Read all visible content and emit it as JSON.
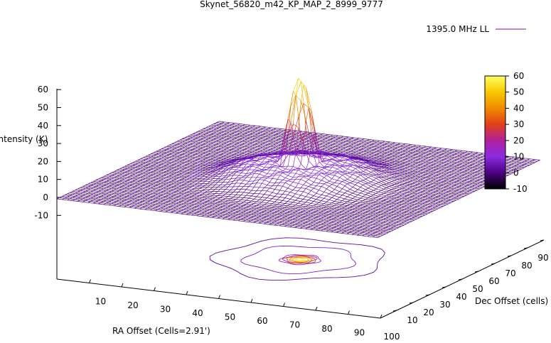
{
  "chart_data": {
    "type": "surface3d",
    "title": "Skynet_56820_m42_KP_MAP_2_8999_9777",
    "legend": {
      "label": "1395.0 MHz LL",
      "color": "#9a3fb0",
      "placement": "top-right"
    },
    "xlabel": "RA Offset (Cells=2.91')",
    "ylabel": "Dec Offset (cells)",
    "zlabel": "Intensity (K)",
    "x_ticks": [
      "10",
      "20",
      "30",
      "40",
      "50",
      "60",
      "70",
      "80",
      "90",
      "100"
    ],
    "y_ticks": [
      "10",
      "20",
      "30",
      "40",
      "50",
      "60",
      "70",
      "80",
      "90",
      "100"
    ],
    "z_ticks": [
      "60",
      "50",
      "40",
      "30",
      "20",
      "10",
      "0",
      "-10"
    ],
    "zlim": [
      -10,
      60
    ],
    "colorbar": {
      "ticks": [
        "60",
        "50",
        "40",
        "30",
        "20",
        "10",
        "0",
        "-10"
      ],
      "range": [
        -10,
        60
      ],
      "colors": [
        "#000000",
        "#4b0082",
        "#8a2be2",
        "#b0209a",
        "#e0401a",
        "#f08a00",
        "#f7c800",
        "#ffff60"
      ]
    },
    "source": {
      "x": 50,
      "y": 50,
      "peak_k": 58,
      "plateau_k": 10
    }
  }
}
